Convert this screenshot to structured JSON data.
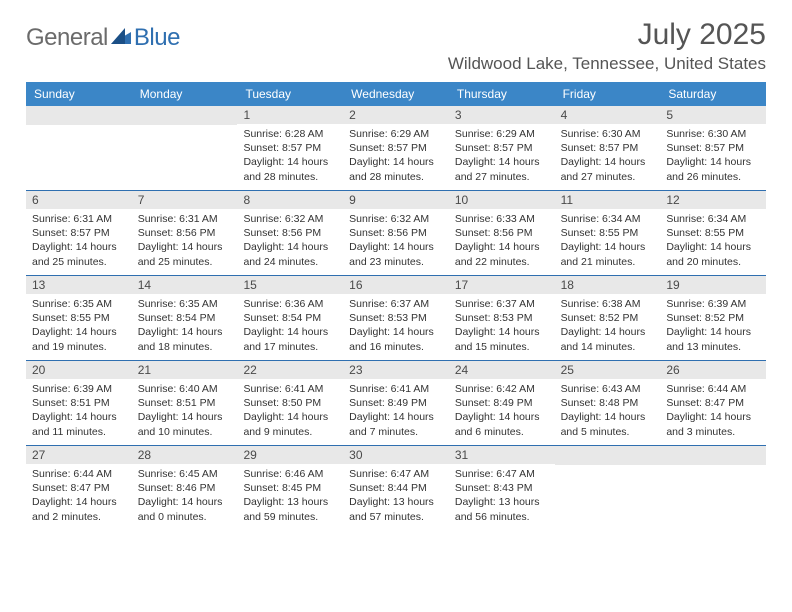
{
  "brand": {
    "part1": "General",
    "part2": "Blue"
  },
  "title": "July 2025",
  "location": "Wildwood Lake, Tennessee, United States",
  "colors": {
    "header_bg": "#3b86c7",
    "header_text": "#ffffff",
    "rule": "#2f6fb0",
    "daynum_bg": "#e8e8e8",
    "body_text": "#333333",
    "brand_gray": "#6b6b6b",
    "brand_blue": "#2f6fb0"
  },
  "days_of_week": [
    "Sunday",
    "Monday",
    "Tuesday",
    "Wednesday",
    "Thursday",
    "Friday",
    "Saturday"
  ],
  "weeks": [
    [
      {
        "n": "",
        "sunrise": "",
        "sunset": "",
        "daylight": ""
      },
      {
        "n": "",
        "sunrise": "",
        "sunset": "",
        "daylight": ""
      },
      {
        "n": "1",
        "sunrise": "Sunrise: 6:28 AM",
        "sunset": "Sunset: 8:57 PM",
        "daylight": "Daylight: 14 hours and 28 minutes."
      },
      {
        "n": "2",
        "sunrise": "Sunrise: 6:29 AM",
        "sunset": "Sunset: 8:57 PM",
        "daylight": "Daylight: 14 hours and 28 minutes."
      },
      {
        "n": "3",
        "sunrise": "Sunrise: 6:29 AM",
        "sunset": "Sunset: 8:57 PM",
        "daylight": "Daylight: 14 hours and 27 minutes."
      },
      {
        "n": "4",
        "sunrise": "Sunrise: 6:30 AM",
        "sunset": "Sunset: 8:57 PM",
        "daylight": "Daylight: 14 hours and 27 minutes."
      },
      {
        "n": "5",
        "sunrise": "Sunrise: 6:30 AM",
        "sunset": "Sunset: 8:57 PM",
        "daylight": "Daylight: 14 hours and 26 minutes."
      }
    ],
    [
      {
        "n": "6",
        "sunrise": "Sunrise: 6:31 AM",
        "sunset": "Sunset: 8:57 PM",
        "daylight": "Daylight: 14 hours and 25 minutes."
      },
      {
        "n": "7",
        "sunrise": "Sunrise: 6:31 AM",
        "sunset": "Sunset: 8:56 PM",
        "daylight": "Daylight: 14 hours and 25 minutes."
      },
      {
        "n": "8",
        "sunrise": "Sunrise: 6:32 AM",
        "sunset": "Sunset: 8:56 PM",
        "daylight": "Daylight: 14 hours and 24 minutes."
      },
      {
        "n": "9",
        "sunrise": "Sunrise: 6:32 AM",
        "sunset": "Sunset: 8:56 PM",
        "daylight": "Daylight: 14 hours and 23 minutes."
      },
      {
        "n": "10",
        "sunrise": "Sunrise: 6:33 AM",
        "sunset": "Sunset: 8:56 PM",
        "daylight": "Daylight: 14 hours and 22 minutes."
      },
      {
        "n": "11",
        "sunrise": "Sunrise: 6:34 AM",
        "sunset": "Sunset: 8:55 PM",
        "daylight": "Daylight: 14 hours and 21 minutes."
      },
      {
        "n": "12",
        "sunrise": "Sunrise: 6:34 AM",
        "sunset": "Sunset: 8:55 PM",
        "daylight": "Daylight: 14 hours and 20 minutes."
      }
    ],
    [
      {
        "n": "13",
        "sunrise": "Sunrise: 6:35 AM",
        "sunset": "Sunset: 8:55 PM",
        "daylight": "Daylight: 14 hours and 19 minutes."
      },
      {
        "n": "14",
        "sunrise": "Sunrise: 6:35 AM",
        "sunset": "Sunset: 8:54 PM",
        "daylight": "Daylight: 14 hours and 18 minutes."
      },
      {
        "n": "15",
        "sunrise": "Sunrise: 6:36 AM",
        "sunset": "Sunset: 8:54 PM",
        "daylight": "Daylight: 14 hours and 17 minutes."
      },
      {
        "n": "16",
        "sunrise": "Sunrise: 6:37 AM",
        "sunset": "Sunset: 8:53 PM",
        "daylight": "Daylight: 14 hours and 16 minutes."
      },
      {
        "n": "17",
        "sunrise": "Sunrise: 6:37 AM",
        "sunset": "Sunset: 8:53 PM",
        "daylight": "Daylight: 14 hours and 15 minutes."
      },
      {
        "n": "18",
        "sunrise": "Sunrise: 6:38 AM",
        "sunset": "Sunset: 8:52 PM",
        "daylight": "Daylight: 14 hours and 14 minutes."
      },
      {
        "n": "19",
        "sunrise": "Sunrise: 6:39 AM",
        "sunset": "Sunset: 8:52 PM",
        "daylight": "Daylight: 14 hours and 13 minutes."
      }
    ],
    [
      {
        "n": "20",
        "sunrise": "Sunrise: 6:39 AM",
        "sunset": "Sunset: 8:51 PM",
        "daylight": "Daylight: 14 hours and 11 minutes."
      },
      {
        "n": "21",
        "sunrise": "Sunrise: 6:40 AM",
        "sunset": "Sunset: 8:51 PM",
        "daylight": "Daylight: 14 hours and 10 minutes."
      },
      {
        "n": "22",
        "sunrise": "Sunrise: 6:41 AM",
        "sunset": "Sunset: 8:50 PM",
        "daylight": "Daylight: 14 hours and 9 minutes."
      },
      {
        "n": "23",
        "sunrise": "Sunrise: 6:41 AM",
        "sunset": "Sunset: 8:49 PM",
        "daylight": "Daylight: 14 hours and 7 minutes."
      },
      {
        "n": "24",
        "sunrise": "Sunrise: 6:42 AM",
        "sunset": "Sunset: 8:49 PM",
        "daylight": "Daylight: 14 hours and 6 minutes."
      },
      {
        "n": "25",
        "sunrise": "Sunrise: 6:43 AM",
        "sunset": "Sunset: 8:48 PM",
        "daylight": "Daylight: 14 hours and 5 minutes."
      },
      {
        "n": "26",
        "sunrise": "Sunrise: 6:44 AM",
        "sunset": "Sunset: 8:47 PM",
        "daylight": "Daylight: 14 hours and 3 minutes."
      }
    ],
    [
      {
        "n": "27",
        "sunrise": "Sunrise: 6:44 AM",
        "sunset": "Sunset: 8:47 PM",
        "daylight": "Daylight: 14 hours and 2 minutes."
      },
      {
        "n": "28",
        "sunrise": "Sunrise: 6:45 AM",
        "sunset": "Sunset: 8:46 PM",
        "daylight": "Daylight: 14 hours and 0 minutes."
      },
      {
        "n": "29",
        "sunrise": "Sunrise: 6:46 AM",
        "sunset": "Sunset: 8:45 PM",
        "daylight": "Daylight: 13 hours and 59 minutes."
      },
      {
        "n": "30",
        "sunrise": "Sunrise: 6:47 AM",
        "sunset": "Sunset: 8:44 PM",
        "daylight": "Daylight: 13 hours and 57 minutes."
      },
      {
        "n": "31",
        "sunrise": "Sunrise: 6:47 AM",
        "sunset": "Sunset: 8:43 PM",
        "daylight": "Daylight: 13 hours and 56 minutes."
      },
      {
        "n": "",
        "sunrise": "",
        "sunset": "",
        "daylight": ""
      },
      {
        "n": "",
        "sunrise": "",
        "sunset": "",
        "daylight": ""
      }
    ]
  ]
}
